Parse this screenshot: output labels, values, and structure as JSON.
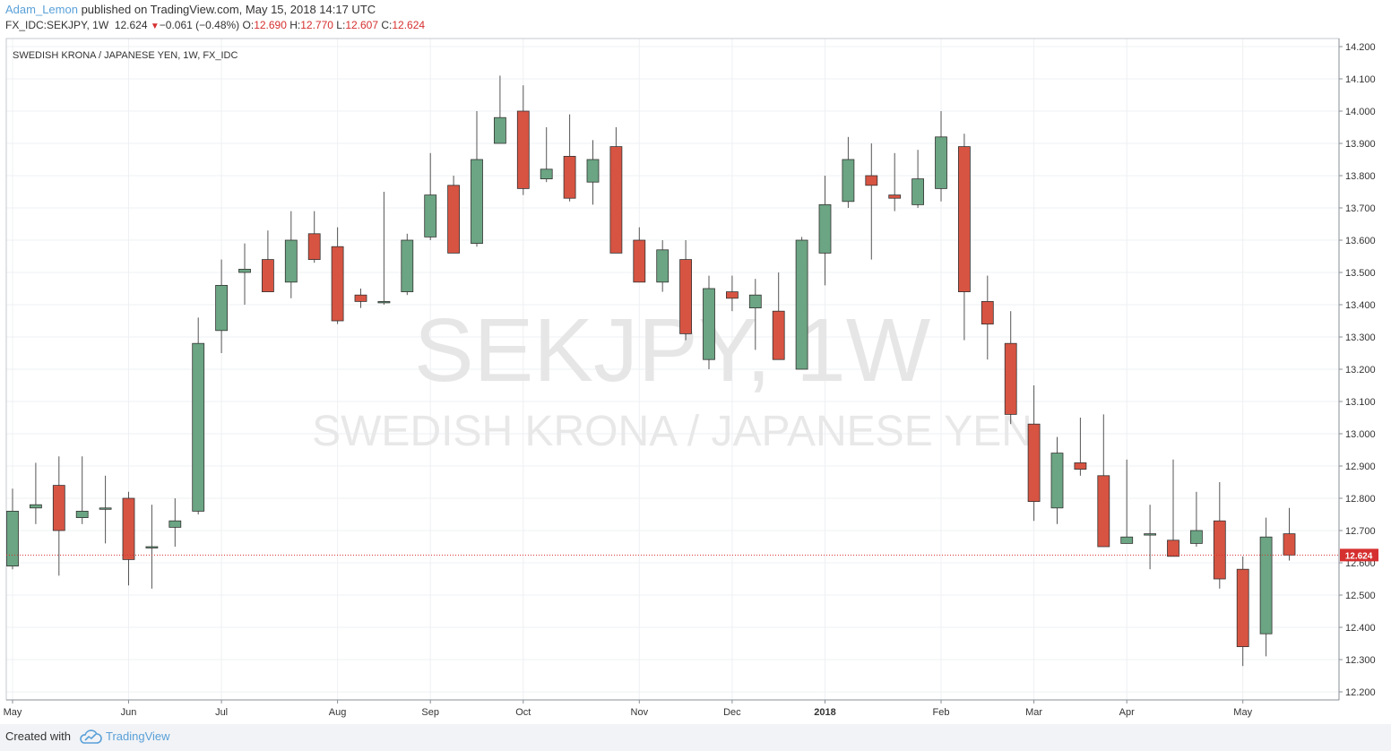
{
  "header": {
    "author": "Adam_Lemon",
    "published": "published on TradingView.com, May 15, 2018 14:17 UTC",
    "symbol": "FX_IDC:SEKJPY, 1W",
    "last": "12.624",
    "change": "−0.061 (−0.48%)",
    "o_label": "O:",
    "o_value": "12.690",
    "h_label": "H:",
    "h_value": "12.770",
    "l_label": "L:",
    "l_value": "12.607",
    "c_label": "C:",
    "c_value": "12.624"
  },
  "chart_title": "SWEDISH KRONA / JAPANESE YEN, 1W, FX_IDC",
  "watermark": {
    "big": "SEKJPY, 1W",
    "small": "SWEDISH KRONA / JAPANESE YEN"
  },
  "price_tag": "12.624",
  "footer": {
    "created": "Created with",
    "brand": "TradingView"
  },
  "colors": {
    "up": "#6ba583",
    "down": "#d75442",
    "price_line": "#d62f2f"
  },
  "icons": {
    "brand": "tradingview-cloud-icon",
    "change": "down-triangle-icon"
  },
  "chart_data": {
    "type": "candlestick",
    "title": "SWEDISH KRONA / JAPANESE YEN, 1W, FX_IDC",
    "ylim": [
      12.18,
      14.23
    ],
    "y_ticks": [
      "12.200",
      "12.300",
      "12.400",
      "12.500",
      "12.600",
      "12.700",
      "12.800",
      "12.900",
      "13.000",
      "13.100",
      "13.200",
      "13.300",
      "13.400",
      "13.500",
      "13.600",
      "13.700",
      "13.800",
      "13.900",
      "14.000",
      "14.100",
      "14.200"
    ],
    "x_ticks": [
      {
        "label": "May",
        "week": 0
      },
      {
        "label": "Jun",
        "week": 5
      },
      {
        "label": "Jul",
        "week": 9
      },
      {
        "label": "Aug",
        "week": 14
      },
      {
        "label": "Sep",
        "week": 18
      },
      {
        "label": "Oct",
        "week": 22
      },
      {
        "label": "Nov",
        "week": 27
      },
      {
        "label": "Dec",
        "week": 31
      },
      {
        "label": "2018",
        "week": 35
      },
      {
        "label": "Feb",
        "week": 40
      },
      {
        "label": "Mar",
        "week": 44
      },
      {
        "label": "Apr",
        "week": 48
      },
      {
        "label": "May",
        "week": 53
      }
    ],
    "grid": true,
    "last_price": 12.624,
    "ohlc": [
      [
        12.59,
        12.83,
        12.58,
        12.76
      ],
      [
        12.77,
        12.91,
        12.72,
        12.78
      ],
      [
        12.84,
        12.93,
        12.56,
        12.7
      ],
      [
        12.74,
        12.93,
        12.72,
        12.76
      ],
      [
        12.77,
        12.87,
        12.66,
        12.77
      ],
      [
        12.8,
        12.82,
        12.53,
        12.61
      ],
      [
        12.65,
        12.78,
        12.52,
        12.65
      ],
      [
        12.71,
        12.8,
        12.65,
        12.73
      ],
      [
        12.76,
        13.36,
        12.75,
        13.28
      ],
      [
        13.32,
        13.54,
        13.25,
        13.46
      ],
      [
        13.5,
        13.59,
        13.4,
        13.51
      ],
      [
        13.54,
        13.63,
        13.44,
        13.44
      ],
      [
        13.47,
        13.69,
        13.42,
        13.6
      ],
      [
        13.62,
        13.69,
        13.53,
        13.54
      ],
      [
        13.58,
        13.64,
        13.34,
        13.35
      ],
      [
        13.43,
        13.45,
        13.39,
        13.41
      ],
      [
        13.41,
        13.75,
        13.4,
        13.41
      ],
      [
        13.44,
        13.62,
        13.43,
        13.6
      ],
      [
        13.61,
        13.87,
        13.6,
        13.74
      ],
      [
        13.77,
        13.8,
        13.56,
        13.56
      ],
      [
        13.59,
        14.0,
        13.58,
        13.85
      ],
      [
        13.9,
        14.11,
        13.9,
        13.98
      ],
      [
        14.0,
        14.08,
        13.74,
        13.76
      ],
      [
        13.79,
        13.95,
        13.78,
        13.82
      ],
      [
        13.86,
        13.99,
        13.72,
        13.73
      ],
      [
        13.78,
        13.91,
        13.71,
        13.85
      ],
      [
        13.89,
        13.95,
        13.56,
        13.56
      ],
      [
        13.6,
        13.64,
        13.47,
        13.47
      ],
      [
        13.47,
        13.6,
        13.44,
        13.57
      ],
      [
        13.54,
        13.6,
        13.29,
        13.31
      ],
      [
        13.23,
        13.49,
        13.2,
        13.45
      ],
      [
        13.44,
        13.49,
        13.38,
        13.42
      ],
      [
        13.39,
        13.48,
        13.26,
        13.43
      ],
      [
        13.38,
        13.5,
        13.23,
        13.23
      ],
      [
        13.2,
        13.61,
        13.2,
        13.6
      ],
      [
        13.56,
        13.8,
        13.46,
        13.71
      ],
      [
        13.72,
        13.92,
        13.7,
        13.85
      ],
      [
        13.8,
        13.9,
        13.54,
        13.77
      ],
      [
        13.74,
        13.87,
        13.69,
        13.73
      ],
      [
        13.71,
        13.88,
        13.7,
        13.79
      ],
      [
        13.76,
        14.0,
        13.72,
        13.92
      ],
      [
        13.89,
        13.93,
        13.29,
        13.44
      ],
      [
        13.41,
        13.49,
        13.23,
        13.34
      ],
      [
        13.28,
        13.38,
        13.03,
        13.06
      ],
      [
        13.03,
        13.15,
        12.73,
        12.79
      ],
      [
        12.77,
        12.99,
        12.72,
        12.94
      ],
      [
        12.91,
        13.05,
        12.87,
        12.89
      ],
      [
        12.87,
        13.06,
        12.65,
        12.65
      ],
      [
        12.66,
        12.92,
        12.66,
        12.68
      ],
      [
        12.69,
        12.78,
        12.58,
        12.69
      ],
      [
        12.67,
        12.92,
        12.62,
        12.62
      ],
      [
        12.66,
        12.82,
        12.65,
        12.7
      ],
      [
        12.73,
        12.85,
        12.52,
        12.55
      ],
      [
        12.58,
        12.62,
        12.28,
        12.34
      ],
      [
        12.38,
        12.74,
        12.31,
        12.68
      ],
      [
        12.69,
        12.77,
        12.607,
        12.624
      ]
    ]
  }
}
